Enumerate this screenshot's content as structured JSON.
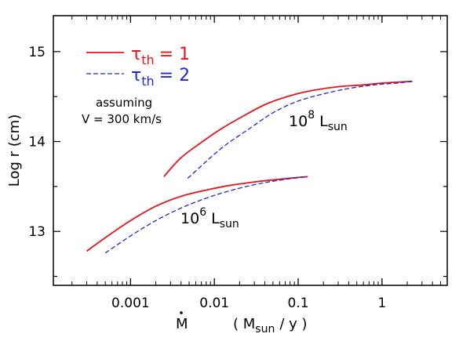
{
  "chart_data": {
    "type": "line",
    "x_scale": "log",
    "xlim": [
      0.00012,
      6
    ],
    "ylim": [
      12.4,
      15.4
    ],
    "x_ticks": [
      {
        "value": 0.001,
        "label": "0.001"
      },
      {
        "value": 0.01,
        "label": "0.01"
      },
      {
        "value": 0.1,
        "label": "0.1"
      },
      {
        "value": 1,
        "label": "1"
      }
    ],
    "y_ticks": [
      {
        "value": 13,
        "label": "13"
      },
      {
        "value": 14,
        "label": "14"
      },
      {
        "value": 15,
        "label": "15"
      }
    ],
    "xlabel": {
      "symbol": "M",
      "unit_open": "( M",
      "unit_sub": "sun",
      "unit_close": "/ y )"
    },
    "ylabel": "Log r   (cm)",
    "grid": false,
    "legend_position": "top-left",
    "legend": [
      {
        "symbol": "τ",
        "sub": "th",
        "value": "= 1",
        "color": "#e8141c",
        "dash": "solid"
      },
      {
        "symbol": "τ",
        "sub": "th",
        "value": "= 2",
        "color": "#1d2ad6",
        "dash": "dashed"
      }
    ],
    "annotations": {
      "assumption_line1": "assuming",
      "assumption_line2": "V = 300 km/s",
      "lum_high": {
        "base": "10",
        "exp": "8",
        "L": "L",
        "sub": "sun"
      },
      "lum_low": {
        "base": "10",
        "exp": "6",
        "L": "L",
        "sub": "sun"
      }
    },
    "series": [
      {
        "group": "10^8 L_sun",
        "tau": 1,
        "color": "#e8141c",
        "dash": "solid",
        "x": [
          0.0025,
          0.004,
          0.007,
          0.012,
          0.02,
          0.04,
          0.08,
          0.15,
          0.3,
          0.6,
          1,
          2.3
        ],
        "y": [
          13.61,
          13.82,
          13.99,
          14.14,
          14.26,
          14.41,
          14.51,
          14.57,
          14.61,
          14.63,
          14.65,
          14.67
        ]
      },
      {
        "group": "10^8 L_sun",
        "tau": 2,
        "color": "#1d2ad6",
        "dash": "dashed",
        "x": [
          0.0048,
          0.007,
          0.01,
          0.015,
          0.025,
          0.05,
          0.1,
          0.2,
          0.4,
          0.8,
          1.5,
          2.3
        ],
        "y": [
          13.59,
          13.73,
          13.86,
          13.99,
          14.13,
          14.32,
          14.45,
          14.53,
          14.59,
          14.63,
          14.65,
          14.67
        ]
      },
      {
        "group": "10^6 L_sun",
        "tau": 1,
        "color": "#e8141c",
        "dash": "solid",
        "x": [
          0.0003,
          0.0005,
          0.001,
          0.002,
          0.004,
          0.008,
          0.015,
          0.03,
          0.06,
          0.13
        ],
        "y": [
          12.78,
          12.93,
          13.12,
          13.28,
          13.39,
          13.46,
          13.51,
          13.55,
          13.58,
          13.61
        ]
      },
      {
        "group": "10^6 L_sun",
        "tau": 2,
        "color": "#1d2ad6",
        "dash": "dashed",
        "x": [
          0.0005,
          0.001,
          0.002,
          0.004,
          0.008,
          0.015,
          0.03,
          0.06,
          0.13
        ],
        "y": [
          12.76,
          12.95,
          13.12,
          13.26,
          13.37,
          13.45,
          13.52,
          13.57,
          13.61
        ]
      }
    ]
  }
}
